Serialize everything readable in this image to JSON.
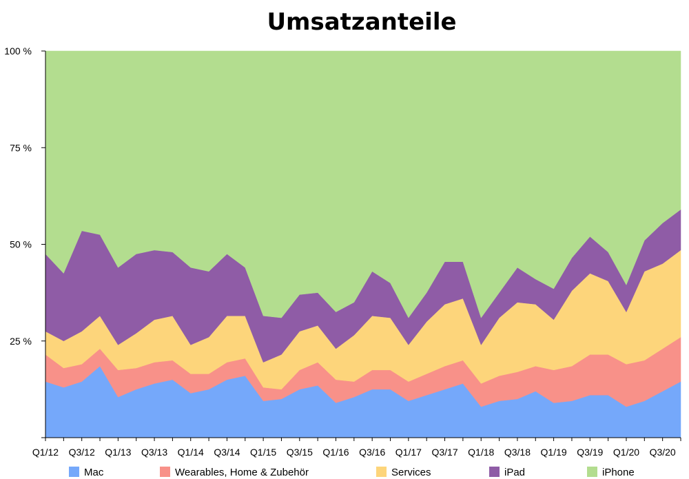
{
  "chart_data": {
    "type": "area",
    "stacked": true,
    "normalized": true,
    "title": "Umsatzanteile",
    "xlabel": "",
    "ylabel": "",
    "ylim": [
      0,
      100
    ],
    "y_ticks": [
      0,
      25,
      50,
      75,
      100
    ],
    "y_tick_labels": [
      "",
      "25 %",
      "50 %",
      "75 %",
      "100 %"
    ],
    "grid": false,
    "legend_position": "bottom",
    "x": [
      "Q1/12",
      "Q2/12",
      "Q3/12",
      "Q4/12",
      "Q1/13",
      "Q2/13",
      "Q3/13",
      "Q4/13",
      "Q1/14",
      "Q2/14",
      "Q3/14",
      "Q4/14",
      "Q1/15",
      "Q2/15",
      "Q3/15",
      "Q4/15",
      "Q1/16",
      "Q2/16",
      "Q3/16",
      "Q4/16",
      "Q1/17",
      "Q2/17",
      "Q3/17",
      "Q4/17",
      "Q1/18",
      "Q2/18",
      "Q3/18",
      "Q4/18",
      "Q1/19",
      "Q2/19",
      "Q3/19",
      "Q4/19",
      "Q1/20",
      "Q2/20",
      "Q3/20",
      "Q4/20"
    ],
    "x_tick_labels": [
      "Q1/12",
      "Q3/12",
      "Q1/13",
      "Q3/13",
      "Q1/14",
      "Q3/14",
      "Q1/15",
      "Q3/15",
      "Q1/16",
      "Q3/16",
      "Q1/17",
      "Q3/17",
      "Q1/18",
      "Q3/18",
      "Q1/19",
      "Q3/19",
      "Q1/20",
      "Q3/20"
    ],
    "series": [
      {
        "name": "Mac",
        "color": "#75a8fa",
        "values": [
          14.5,
          13,
          14.5,
          18.5,
          10.5,
          12.5,
          14,
          15,
          11.5,
          12.5,
          15,
          16,
          9.5,
          10,
          12.5,
          13.5,
          9,
          10.5,
          12.5,
          12.5,
          9.5,
          11,
          12.5,
          14,
          8,
          9.5,
          10,
          12,
          9,
          9.5,
          11,
          11,
          8,
          9.5,
          12,
          14.5
        ]
      },
      {
        "name": "Wearables, Home & Zubehör",
        "color": "#f89189",
        "values": [
          7,
          5,
          4.5,
          4.5,
          7,
          5.5,
          5.5,
          5,
          5,
          4,
          4.5,
          4.5,
          3.5,
          2.5,
          5,
          6,
          6,
          4,
          5,
          5,
          5,
          5.5,
          6,
          6,
          6,
          6.5,
          7,
          6.5,
          8.5,
          9,
          10.5,
          10.5,
          11,
          10.5,
          11,
          11.5
        ]
      },
      {
        "name": "Services",
        "color": "#fdd57b",
        "values": [
          6,
          7,
          8.5,
          8.5,
          6.5,
          9,
          11,
          11.5,
          7.5,
          9.5,
          12,
          11,
          6.5,
          9,
          10,
          9.5,
          8,
          12,
          14,
          13.5,
          9.5,
          13.5,
          16,
          16,
          10,
          15,
          18,
          16,
          13,
          19.5,
          21,
          19,
          13.5,
          23,
          22,
          22.5
        ]
      },
      {
        "name": "iPad",
        "color": "#8f5ca6",
        "values": [
          20,
          17.5,
          26,
          21,
          20,
          20.5,
          18,
          16.5,
          20,
          17,
          16,
          12.5,
          12,
          9.5,
          9.5,
          8.5,
          9.5,
          8.5,
          11.5,
          9,
          7,
          7.5,
          11,
          9.5,
          7,
          6.5,
          9,
          6.5,
          8,
          8.5,
          9.5,
          7.5,
          7,
          8,
          10.5,
          10.5
        ]
      },
      {
        "name": "iPhone",
        "color": "#b3dd8f",
        "values": [
          52.5,
          57.5,
          46.5,
          47.5,
          56,
          52.5,
          51.5,
          52,
          56,
          57,
          52.5,
          56,
          68.5,
          69,
          63,
          62.5,
          67.5,
          65,
          57,
          60,
          69,
          62.5,
          54.5,
          54.5,
          69,
          62.5,
          56,
          59,
          61.5,
          53.5,
          48,
          52,
          60.5,
          49,
          44.5,
          41
        ]
      }
    ]
  }
}
